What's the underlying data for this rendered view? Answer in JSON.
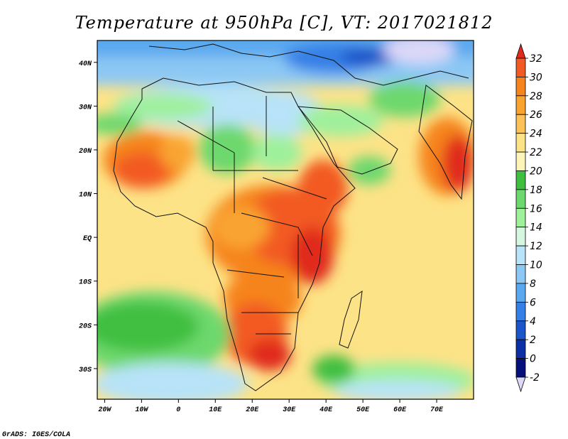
{
  "title": "Temperature at 950hPa [C], VT: 2017021812",
  "credit": "GrADS: IGES/COLA",
  "map": {
    "lon_range": [
      -22,
      80
    ],
    "lat_range": [
      -37,
      45
    ],
    "lat_labels": [
      {
        "lat": 40,
        "label": "40N"
      },
      {
        "lat": 30,
        "label": "30N"
      },
      {
        "lat": 20,
        "label": "20N"
      },
      {
        "lat": 10,
        "label": "10N"
      },
      {
        "lat": 0,
        "label": "EQ"
      },
      {
        "lat": -10,
        "label": "10S"
      },
      {
        "lat": -20,
        "label": "20S"
      },
      {
        "lat": -30,
        "label": "30S"
      }
    ],
    "lon_labels": [
      {
        "lon": -20,
        "label": "20W"
      },
      {
        "lon": -10,
        "label": "10W"
      },
      {
        "lon": 0,
        "label": "0"
      },
      {
        "lon": 10,
        "label": "10E"
      },
      {
        "lon": 20,
        "label": "20E"
      },
      {
        "lon": 30,
        "label": "30E"
      },
      {
        "lon": 40,
        "label": "40E"
      },
      {
        "lon": 50,
        "label": "50E"
      },
      {
        "lon": 60,
        "label": "60E"
      },
      {
        "lon": 70,
        "label": "70E"
      }
    ]
  },
  "colorbar": {
    "levels": [
      "32",
      "30",
      "28",
      "26",
      "24",
      "22",
      "20",
      "18",
      "16",
      "14",
      "12",
      "10",
      "8",
      "6",
      "4",
      "2",
      "0",
      "-2"
    ],
    "colors": [
      "#e02a1e",
      "#f25a24",
      "#f6841e",
      "#f9a431",
      "#fcc25a",
      "#fde387",
      "#fdf5b8",
      "#3fbf3f",
      "#6dd86d",
      "#9ff09b",
      "#d5f7e0",
      "#b8e3f8",
      "#8cc8f4",
      "#5aa8ef",
      "#3480e6",
      "#1a55c9",
      "#0d2fa6",
      "#07107a",
      "#dcd8f8"
    ]
  }
}
